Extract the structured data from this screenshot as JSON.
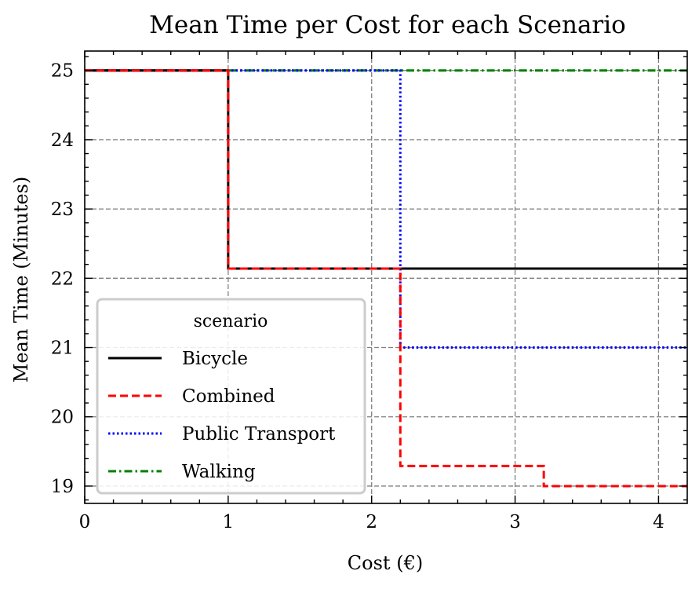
{
  "chart_data": {
    "type": "line",
    "drawstyle": "steps-post",
    "title": "Mean Time per Cost for each Scenario",
    "xlabel": "Cost (€)",
    "ylabel": "Mean Time (Minutes)",
    "xlim": [
      0,
      4.2
    ],
    "ylim": [
      18.75,
      25.28
    ],
    "xticks": [
      0,
      1,
      2,
      3,
      4
    ],
    "yticks": [
      19,
      20,
      21,
      22,
      23,
      24,
      25
    ],
    "xtick_labels": [
      "0",
      "1",
      "2",
      "3",
      "4"
    ],
    "ytick_labels": [
      "19",
      "20",
      "21",
      "22",
      "23",
      "24",
      "25"
    ],
    "grid": true,
    "legend": {
      "title": "scenario",
      "placement": "lower-left"
    },
    "series": [
      {
        "name": "Bicycle",
        "color": "#000000",
        "linestyle": "solid",
        "x": [
          0,
          1,
          4.2
        ],
        "y": [
          25,
          22.14,
          22.14
        ]
      },
      {
        "name": "Combined",
        "color": "#ff0000",
        "linestyle": "dashed",
        "x": [
          0,
          1,
          2.2,
          3.2,
          4.2
        ],
        "y": [
          25,
          22.14,
          19.29,
          19.0,
          19.0
        ]
      },
      {
        "name": "Public Transport",
        "color": "#0000ff",
        "linestyle": "dotted",
        "x": [
          0,
          2.2,
          4.2
        ],
        "y": [
          25,
          21.0,
          21.0
        ]
      },
      {
        "name": "Walking",
        "color": "#008000",
        "linestyle": "dashdot",
        "x": [
          0,
          4.2
        ],
        "y": [
          25,
          25
        ]
      }
    ]
  }
}
